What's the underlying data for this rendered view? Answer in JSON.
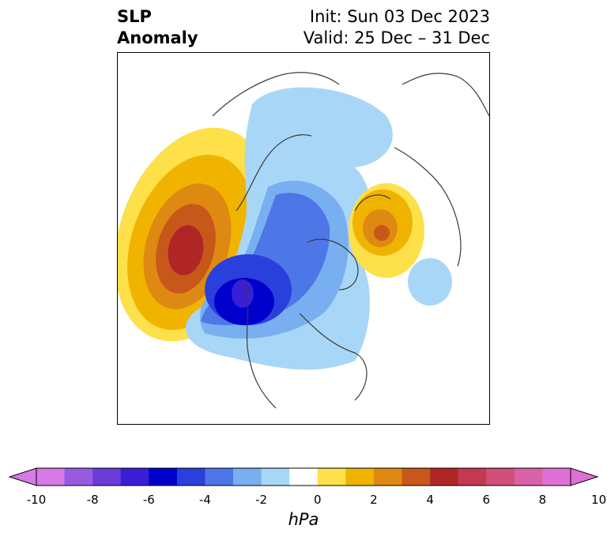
{
  "header": {
    "title_line1": "SLP",
    "title_line2": "Anomaly",
    "init_label": "Init: Sun 03 Dec 2023",
    "valid_label": "Valid: 25 Dec – 31 Dec"
  },
  "colorbar": {
    "unit": "hPa",
    "ticks": [
      "-10",
      "-8",
      "-6",
      "-4",
      "-2",
      "0",
      "2",
      "4",
      "6",
      "8",
      "10"
    ],
    "levels": [
      -10,
      -9,
      -8,
      -7,
      -6,
      -5,
      -4,
      -3,
      -2,
      -1,
      1,
      2,
      3,
      4,
      5,
      6,
      7,
      8,
      9,
      10
    ],
    "colors": [
      "#d57ae6",
      "#9a5ae0",
      "#6a3dd8",
      "#3a1ed6",
      "#0000cc",
      "#2a40dc",
      "#4d76e6",
      "#78aff0",
      "#a8d6f6",
      "#ffffff",
      "#fde04a",
      "#f0b400",
      "#de8a12",
      "#c8581a",
      "#b02626",
      "#c23a52",
      "#d0507a",
      "#da62a8",
      "#e070d6"
    ]
  },
  "map": {
    "projection": "north-polar-stereographic",
    "field": "SLP anomaly (hPa)",
    "features": [
      {
        "name": "NE Pacific / Alaska high anomaly",
        "peak_hpa": 7
      },
      {
        "name": "Arctic / western Canada low anomaly",
        "peak_hpa": -6
      },
      {
        "name": "Eastern Europe / western Russia high anomaly",
        "peak_hpa": 5
      },
      {
        "name": "Atlantic low anomaly",
        "peak_hpa": -2
      }
    ]
  }
}
